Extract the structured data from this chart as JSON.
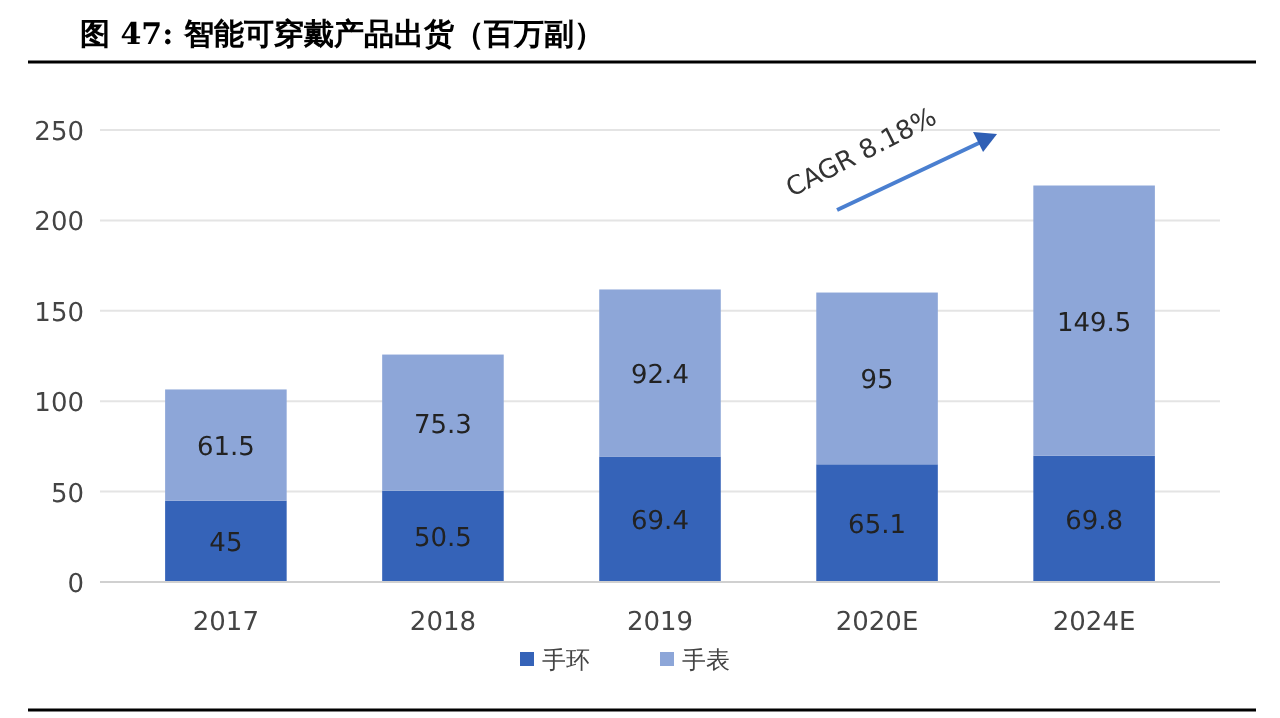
{
  "chart_data": {
    "type": "bar",
    "title": "图 47: 智能可穿戴产品出货（百万副）",
    "categories": [
      "2017",
      "2018",
      "2019",
      "2020E",
      "2024E"
    ],
    "stacked": true,
    "series": [
      {
        "name": "手环",
        "color": "#3563b8",
        "values": [
          45,
          50.5,
          69.4,
          65.1,
          69.8
        ]
      },
      {
        "name": "手表",
        "color": "#8da6d8",
        "values": [
          61.5,
          75.3,
          92.4,
          95,
          149.5
        ]
      }
    ],
    "ylim": [
      0,
      250
    ],
    "yticks": [
      0,
      50,
      100,
      150,
      200,
      250
    ],
    "grid": "y",
    "legend": "bottom",
    "data_labels": true,
    "annotations": [
      "CAGR 8.18%"
    ]
  }
}
